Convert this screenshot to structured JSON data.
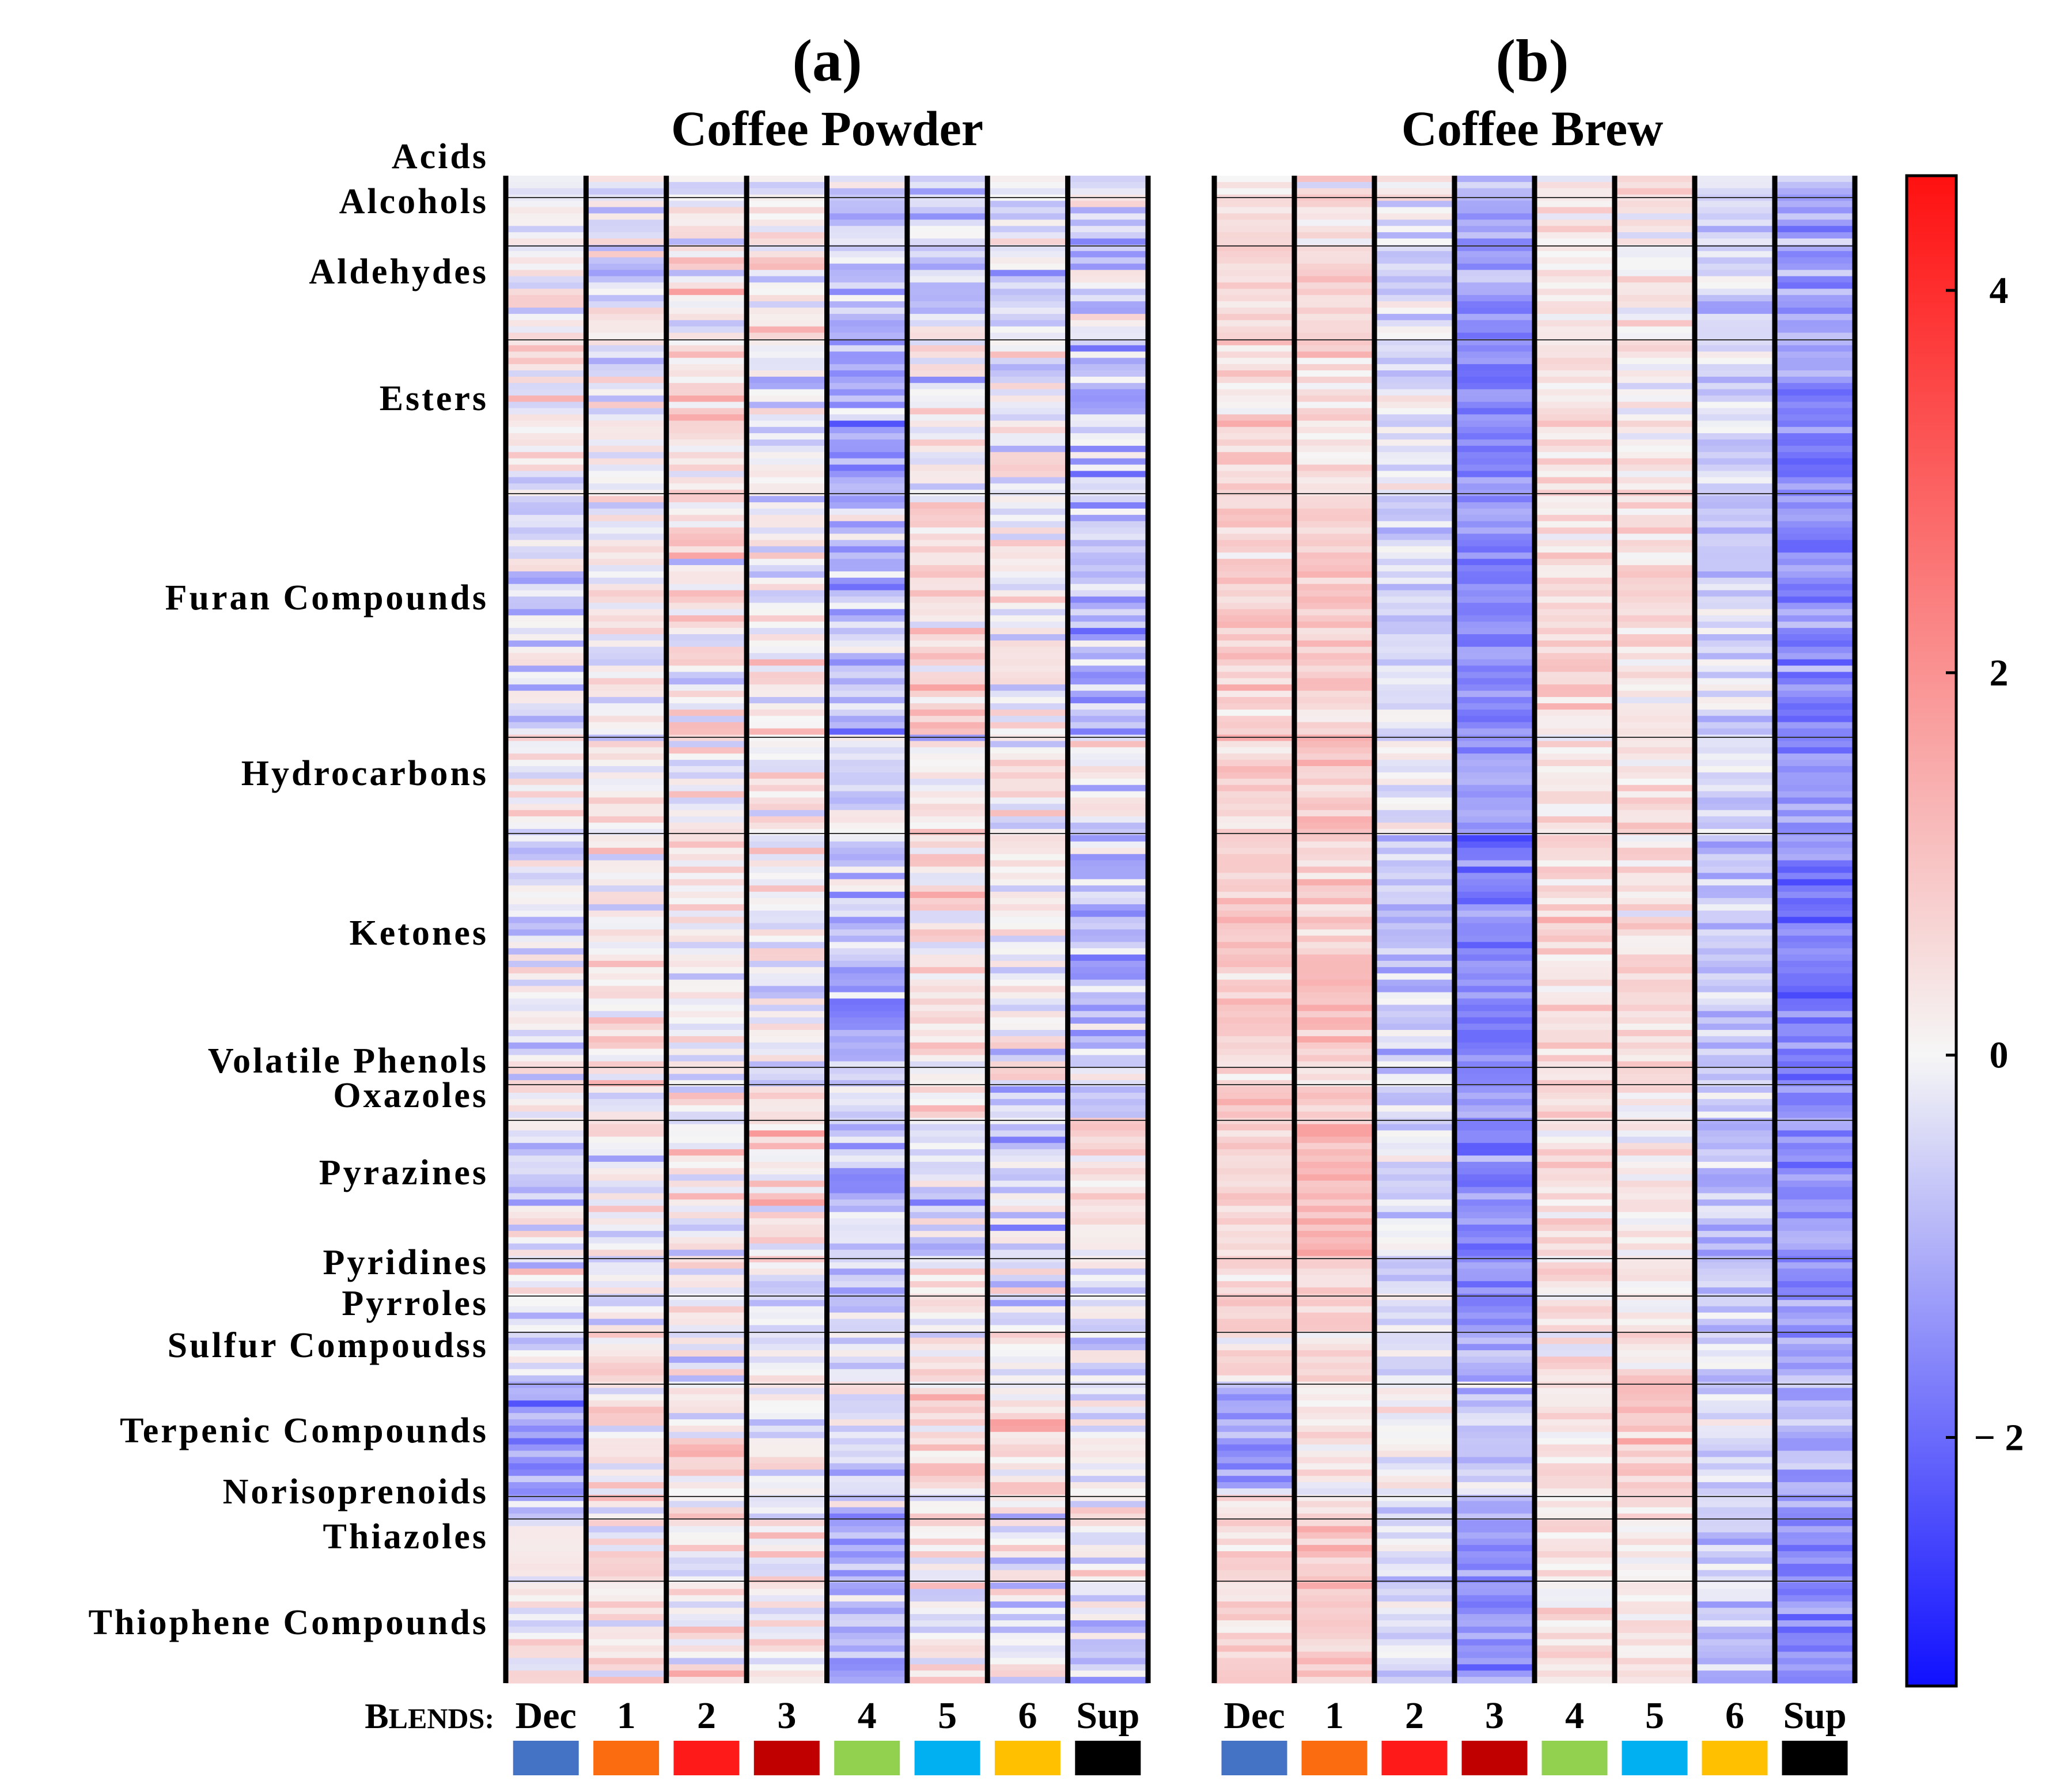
{
  "chart_data": {
    "type": "heatmap",
    "title": "",
    "color_scale": {
      "min": -3.3,
      "max": 4.6,
      "ticks": [
        4,
        2,
        0,
        -2
      ],
      "tick_labels": [
        "4",
        "2",
        "0",
        "− 2"
      ],
      "low_color": "#1010ff",
      "mid_color": "#f6f6f6",
      "high_color": "#ff1010"
    },
    "panels": [
      {
        "letter": "(a)",
        "title": "Coffee Powder",
        "group_means": [
          [
            -0.2,
            -0.5,
            -0.2,
            -0.3,
            -0.4,
            -0.3,
            -0.2,
            -0.6
          ],
          [
            0.0,
            -0.3,
            0.1,
            0.0,
            -0.7,
            -0.5,
            -0.3,
            -0.5
          ],
          [
            0.2,
            -0.3,
            0.3,
            0.1,
            -0.9,
            -0.6,
            -0.4,
            -0.3
          ],
          [
            0.1,
            0.0,
            0.4,
            0.1,
            -1.1,
            0.0,
            -0.1,
            -0.6
          ],
          [
            -0.2,
            0.1,
            0.3,
            0.2,
            -0.8,
            0.5,
            0.1,
            -0.9
          ],
          [
            0.0,
            0.3,
            0.2,
            0.1,
            -0.4,
            0.0,
            0.0,
            -0.3
          ],
          [
            -0.2,
            0.1,
            0.2,
            0.0,
            -1.0,
            0.4,
            0.1,
            -0.9
          ],
          [
            -0.1,
            0.2,
            0.2,
            0.0,
            -0.6,
            0.2,
            -0.1,
            -0.4
          ],
          [
            -0.3,
            0.0,
            0.1,
            0.2,
            -0.5,
            0.2,
            -0.2,
            -0.3
          ],
          [
            -0.3,
            0.0,
            0.2,
            0.5,
            -0.6,
            -0.4,
            -0.6,
            0.6
          ],
          [
            -0.1,
            0.1,
            0.1,
            0.1,
            -0.7,
            0.0,
            -0.2,
            -0.3
          ],
          [
            0.0,
            0.4,
            0.2,
            0.0,
            -0.6,
            0.0,
            -0.2,
            -0.2
          ],
          [
            -0.4,
            0.1,
            0.2,
            0.0,
            -0.5,
            0.3,
            -0.1,
            -0.3
          ],
          [
            -1.2,
            0.2,
            0.3,
            0.1,
            -0.4,
            0.6,
            0.4,
            -0.1
          ],
          [
            -0.5,
            0.1,
            0.2,
            0.1,
            -0.4,
            -0.1,
            -0.1,
            0.3
          ],
          [
            0.0,
            0.4,
            0.3,
            0.4,
            -1.0,
            0.0,
            -0.1,
            -0.1
          ],
          [
            0.1,
            0.4,
            0.3,
            0.1,
            -0.8,
            0.0,
            -0.1,
            -0.3
          ]
        ]
      },
      {
        "letter": "(b)",
        "title": "Coffee Brew",
        "group_means": [
          [
            0.1,
            0.2,
            0.0,
            -0.8,
            0.2,
            0.3,
            0.0,
            -1.0
          ],
          [
            0.4,
            0.4,
            -0.2,
            -1.0,
            0.3,
            0.2,
            -0.3,
            -1.2
          ],
          [
            0.6,
            0.5,
            -0.4,
            -1.3,
            0.3,
            0.3,
            -0.5,
            -1.3
          ],
          [
            0.6,
            0.6,
            -0.3,
            -1.4,
            0.5,
            0.3,
            -0.6,
            -1.4
          ],
          [
            0.8,
            0.8,
            -0.5,
            -1.6,
            0.6,
            0.5,
            -0.6,
            -1.6
          ],
          [
            0.6,
            0.7,
            -0.2,
            -1.2,
            0.5,
            0.3,
            -0.4,
            -1.4
          ],
          [
            0.9,
            0.9,
            -0.6,
            -1.7,
            0.6,
            0.4,
            -0.6,
            -1.7
          ],
          [
            0.8,
            0.9,
            -0.6,
            -1.6,
            0.6,
            0.4,
            -0.6,
            -1.6
          ],
          [
            0.7,
            0.8,
            -0.5,
            -1.5,
            0.5,
            0.3,
            -0.5,
            -1.5
          ],
          [
            0.6,
            1.2,
            -0.3,
            -1.6,
            0.5,
            0.3,
            -0.8,
            -1.5
          ],
          [
            0.6,
            0.8,
            -0.4,
            -1.3,
            0.4,
            0.2,
            -0.5,
            -1.3
          ],
          [
            0.6,
            0.9,
            -0.3,
            -1.3,
            0.4,
            0.2,
            -0.5,
            -1.3
          ],
          [
            0.4,
            0.6,
            -0.2,
            -1.0,
            0.3,
            0.4,
            -0.5,
            -1.2
          ],
          [
            -1.2,
            0.3,
            0.1,
            -0.8,
            0.4,
            1.0,
            -0.3,
            -1.0
          ],
          [
            0.5,
            0.8,
            -0.4,
            -1.2,
            0.3,
            0.2,
            -0.6,
            -1.4
          ],
          [
            0.6,
            1.0,
            -0.5,
            -1.4,
            0.4,
            0.3,
            -0.7,
            -1.5
          ],
          [
            0.7,
            0.9,
            -0.5,
            -1.4,
            0.5,
            0.3,
            -0.6,
            -1.4
          ]
        ]
      }
    ],
    "row_groups": [
      "Acids",
      "Alcohols",
      "Aldehydes",
      "Esters",
      "Furan Compounds",
      "Hydrocarbons",
      "Ketones",
      "Volatile Phenols",
      "Oxazoles",
      "Pyrazines",
      "Pyridines",
      "Pyrroles",
      "Sulfur Compoudss",
      "Terpenic Compounds",
      "Norisoprenoids",
      "Thiazoles",
      "Thiophene Compounds"
    ],
    "columns": [
      "Dec",
      "1",
      "2",
      "3",
      "4",
      "5",
      "6",
      "Sup"
    ],
    "blends_label": "Blends:",
    "blend_colors": [
      "#4472c4",
      "#fb6b0f",
      "#ff1a1a",
      "#c00000",
      "#92d050",
      "#00b0f0",
      "#ffc000",
      "#000000"
    ]
  }
}
